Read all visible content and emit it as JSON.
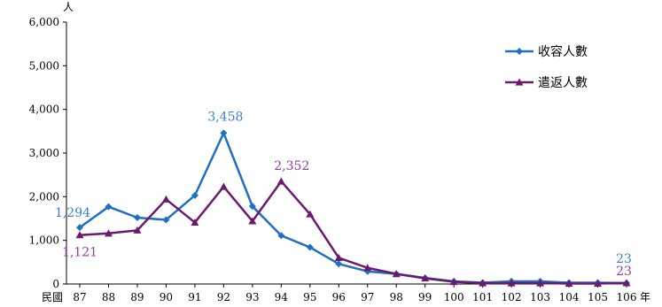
{
  "chart_data": {
    "type": "line",
    "title": "",
    "xlabel": "年",
    "x_prefix": "民國",
    "ylabel": "人",
    "ylim": [
      0,
      6000
    ],
    "yticks": [
      "0",
      "1,000",
      "2,000",
      "3,000",
      "4,000",
      "5,000",
      "6,000"
    ],
    "grid": false,
    "legend_position": "top-right",
    "categories": [
      "87",
      "88",
      "89",
      "90",
      "91",
      "92",
      "93",
      "94",
      "95",
      "96",
      "97",
      "98",
      "99",
      "100",
      "101",
      "102",
      "103",
      "104",
      "105",
      "106"
    ],
    "series": [
      {
        "name": "收容人數",
        "color": "#1f6fc5",
        "marker": "diamond",
        "values": [
          1294,
          1770,
          1520,
          1470,
          2030,
          3458,
          1780,
          1110,
          840,
          460,
          290,
          230,
          140,
          60,
          30,
          60,
          60,
          30,
          30,
          23
        ]
      },
      {
        "name": "遣返人數",
        "color": "#6a1b6f",
        "marker": "triangle",
        "values": [
          1121,
          1160,
          1230,
          1940,
          1410,
          2230,
          1440,
          2352,
          1600,
          600,
          370,
          230,
          130,
          50,
          20,
          20,
          20,
          10,
          10,
          23
        ]
      }
    ],
    "annotations": [
      {
        "series": 0,
        "index": 0,
        "text": "1,294",
        "color": "#3a7fd5"
      },
      {
        "series": 1,
        "index": 0,
        "text": "1,121",
        "color": "#8e3da3"
      },
      {
        "series": 0,
        "index": 5,
        "text": "3,458",
        "color": "#3a7fd5"
      },
      {
        "series": 1,
        "index": 7,
        "text": "2,352",
        "color": "#8e3da3"
      },
      {
        "series": 0,
        "index": 19,
        "text": "23",
        "color": "#3a7fd5"
      },
      {
        "series": 1,
        "index": 19,
        "text": "23",
        "color": "#8e3da3"
      }
    ]
  }
}
